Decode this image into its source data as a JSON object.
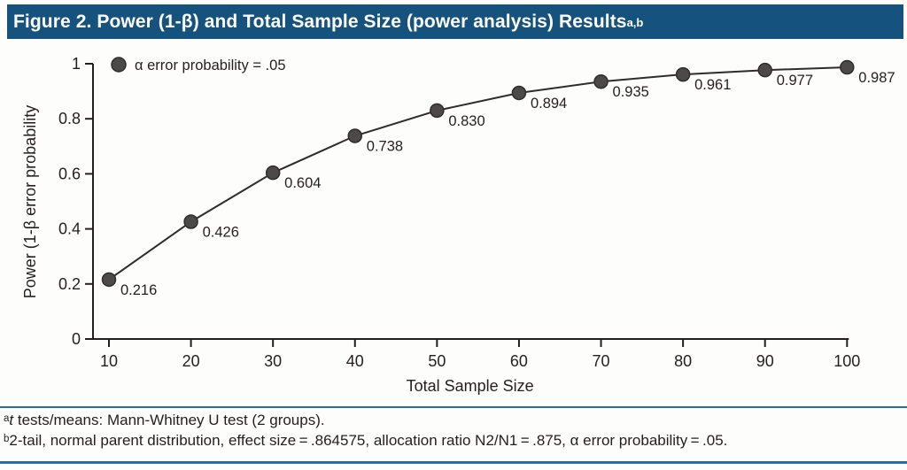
{
  "header": {
    "title": "Figure 2. Power (1-β) and Total Sample Size (power analysis) Results",
    "title_superscript": "a,b"
  },
  "chart_data": {
    "type": "line",
    "x": [
      10,
      20,
      30,
      40,
      50,
      60,
      70,
      80,
      90,
      100
    ],
    "values": [
      0.216,
      0.426,
      0.604,
      0.738,
      0.83,
      0.894,
      0.935,
      0.961,
      0.977,
      0.987
    ],
    "point_labels": [
      "0.216",
      "0.426",
      "0.604",
      "0.738",
      "0.830",
      "0.894",
      "0.935",
      "0.961",
      "0.977",
      "0.987"
    ],
    "xlabel": "Total Sample Size",
    "ylabel": "Power (1-β error probability",
    "x_tick_labels": [
      "10",
      "20",
      "30",
      "40",
      "50",
      "60",
      "70",
      "80",
      "90",
      "100"
    ],
    "y_tick_values": [
      0,
      0.2,
      0.4,
      0.6,
      0.8,
      1
    ],
    "y_tick_labels": [
      "0",
      "0.2",
      "0.4",
      "0.6",
      "0.8",
      "1"
    ],
    "xlim": [
      10,
      100
    ],
    "ylim": [
      0,
      1
    ],
    "grid": false,
    "legend_position": "top-left",
    "legend": {
      "label": "α error probability = .05"
    }
  },
  "footnotes": {
    "a_sup": "a",
    "a_italic": "t",
    "a_rest": " tests/means: Mann-Whitney U test (2 groups).",
    "b_sup": "b",
    "b_text": "2-tail, normal parent distribution, effect size = .864575, allocation ratio N2/N1 = .875, α error probability = .05."
  },
  "colors": {
    "header_bg": "#15527d",
    "header_text": "#ffffff",
    "rule_blue": "#2a6da4",
    "axis": "#231f20",
    "series_line": "#2e2d2c",
    "marker_fill": "#4b4a48",
    "marker_stroke": "#2e2d2c",
    "label_text": "#231f20"
  }
}
